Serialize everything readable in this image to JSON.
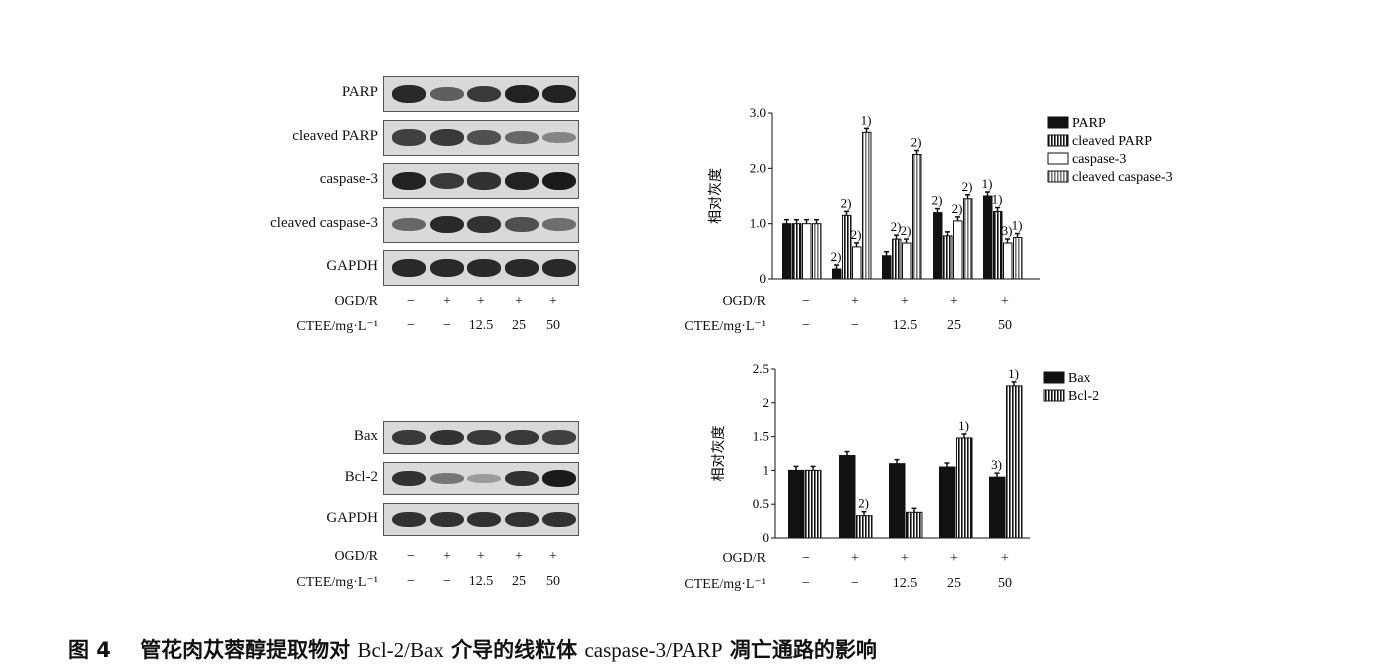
{
  "top_blot": {
    "rows": [
      {
        "label": "PARP",
        "bands": [
          0.9,
          0.55,
          0.8,
          0.95,
          0.95
        ]
      },
      {
        "label": "cleaved PARP",
        "bands": [
          0.75,
          0.8,
          0.65,
          0.5,
          0.3
        ]
      },
      {
        "label": "caspase-3",
        "bands": [
          0.95,
          0.8,
          0.85,
          0.95,
          1.0
        ]
      },
      {
        "label": "cleaved caspase-3",
        "bands": [
          0.5,
          0.9,
          0.85,
          0.65,
          0.45
        ]
      },
      {
        "label": "GAPDH",
        "bands": [
          0.9,
          0.9,
          0.9,
          0.9,
          0.9
        ]
      }
    ]
  },
  "bottom_blot": {
    "rows": [
      {
        "label": "Bax",
        "bands": [
          0.8,
          0.85,
          0.8,
          0.8,
          0.75
        ]
      },
      {
        "label": "Bcl-2",
        "bands": [
          0.85,
          0.4,
          0.15,
          0.85,
          1.0
        ]
      },
      {
        "label": "GAPDH",
        "bands": [
          0.85,
          0.85,
          0.85,
          0.85,
          0.85
        ]
      }
    ]
  },
  "conditions": {
    "ogd_label": "OGD/R",
    "ctee_label": "CTEE/mg·L⁻¹",
    "ogd": [
      "−",
      "+",
      "+",
      "+",
      "+"
    ],
    "ctee": [
      "−",
      "−",
      "12.5",
      "25",
      "50"
    ]
  },
  "chart_data": [
    {
      "type": "bar",
      "categories": [
        "1",
        "2",
        "3",
        "4",
        "5"
      ],
      "ylabel": "相对灰度",
      "ylim": [
        0,
        3.0
      ],
      "yticks": [
        "0",
        "1.0",
        "2.0",
        "3.0"
      ],
      "legend_position": "top-right",
      "series": [
        {
          "name": "PARP",
          "values": [
            1.0,
            0.18,
            0.42,
            1.2,
            1.5
          ],
          "annotations": [
            "",
            "2)",
            "",
            "2)",
            "1)"
          ]
        },
        {
          "name": "cleaved PARP",
          "values": [
            1.0,
            1.15,
            0.72,
            0.78,
            1.22
          ],
          "annotations": [
            "",
            "2)",
            "2)",
            "",
            "1)"
          ]
        },
        {
          "name": "caspase-3",
          "values": [
            1.0,
            0.58,
            0.65,
            1.05,
            0.65
          ],
          "annotations": [
            "",
            "2)",
            "2)",
            "2)",
            "3)"
          ]
        },
        {
          "name": "cleaved caspase-3",
          "values": [
            1.0,
            2.65,
            2.25,
            1.45,
            0.75
          ],
          "annotations": [
            "",
            "1)",
            "2)",
            "2)",
            "1)"
          ]
        }
      ]
    },
    {
      "type": "bar",
      "categories": [
        "1",
        "2",
        "3",
        "4",
        "5"
      ],
      "ylabel": "相对灰度",
      "ylim": [
        0,
        2.5
      ],
      "yticks": [
        "0",
        "0.5",
        "1",
        "1.5",
        "2",
        "2.5"
      ],
      "legend_position": "top-right",
      "series": [
        {
          "name": "Bax",
          "values": [
            1.0,
            1.22,
            1.1,
            1.05,
            0.9
          ],
          "annotations": [
            "",
            "",
            "",
            "",
            "3)"
          ]
        },
        {
          "name": "Bcl-2",
          "values": [
            1.0,
            0.33,
            0.38,
            1.48,
            2.25
          ],
          "annotations": [
            "",
            "2)",
            "",
            "1)",
            "1)"
          ]
        }
      ]
    }
  ],
  "caption": {
    "prefix": "图 4",
    "title_cn1": "管花肉苁蓉醇提取物对 ",
    "latin1": "Bcl-2/Bax",
    "title_cn2": " 介导的线粒体 ",
    "latin2": "caspase-3/PARP",
    "title_cn3": " 凋亡通路的影响"
  },
  "colors": {
    "bar_dark": "#111111",
    "band": "#1a1a1a",
    "strip_bg": "#d9d9d9"
  }
}
